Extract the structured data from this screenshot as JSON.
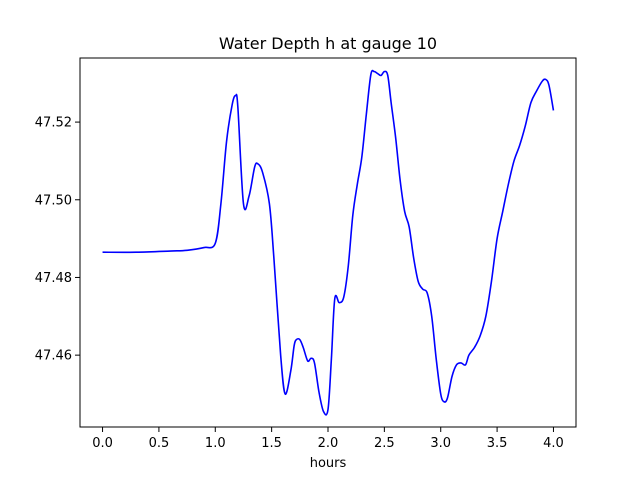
{
  "chart_data": {
    "type": "line",
    "title": "Water Depth h at gauge 10",
    "xlabel": "hours",
    "ylabel": "",
    "xlim": [
      -0.2,
      4.2
    ],
    "ylim": [
      47.4415,
      47.5365
    ],
    "x_ticks": [
      0.0,
      0.5,
      1.0,
      1.5,
      2.0,
      2.5,
      3.0,
      3.5,
      4.0
    ],
    "x_tick_labels": [
      "0.0",
      "0.5",
      "1.0",
      "1.5",
      "2.0",
      "2.5",
      "3.0",
      "3.5",
      "4.0"
    ],
    "y_ticks": [
      47.46,
      47.48,
      47.5,
      47.52
    ],
    "y_tick_labels": [
      "47.46",
      "47.48",
      "47.50",
      "47.52"
    ],
    "grid": false,
    "line_color": "#0000ff",
    "series": [
      {
        "name": "",
        "x": [
          0.0,
          0.3,
          0.6,
          0.75,
          0.9,
          1.0,
          1.05,
          1.1,
          1.15,
          1.18,
          1.2,
          1.25,
          1.3,
          1.35,
          1.38,
          1.42,
          1.48,
          1.52,
          1.58,
          1.62,
          1.67,
          1.7,
          1.72,
          1.75,
          1.78,
          1.82,
          1.85,
          1.88,
          1.92,
          1.96,
          2.0,
          2.03,
          2.06,
          2.1,
          2.14,
          2.18,
          2.22,
          2.26,
          2.3,
          2.34,
          2.38,
          2.41,
          2.44,
          2.47,
          2.5,
          2.53,
          2.56,
          2.6,
          2.64,
          2.68,
          2.72,
          2.76,
          2.8,
          2.84,
          2.88,
          2.92,
          2.96,
          3.0,
          3.03,
          3.06,
          3.1,
          3.14,
          3.18,
          3.22,
          3.25,
          3.3,
          3.35,
          3.4,
          3.45,
          3.5,
          3.55,
          3.6,
          3.65,
          3.7,
          3.75,
          3.8,
          3.85,
          3.9,
          3.93,
          3.96,
          4.0
        ],
        "values": [
          47.4865,
          47.4865,
          47.4868,
          47.487,
          47.4877,
          47.4888,
          47.499,
          47.515,
          47.5245,
          47.5268,
          47.524,
          47.499,
          47.501,
          47.5085,
          47.5092,
          47.507,
          47.499,
          47.485,
          47.46,
          47.45,
          47.456,
          47.4625,
          47.464,
          47.464,
          47.462,
          47.4585,
          47.4592,
          47.458,
          47.4505,
          47.4455,
          47.446,
          47.459,
          47.4745,
          47.4735,
          47.475,
          47.483,
          47.496,
          47.504,
          47.511,
          47.522,
          47.5322,
          47.533,
          47.5325,
          47.532,
          47.533,
          47.532,
          47.525,
          47.516,
          47.505,
          47.497,
          47.493,
          47.485,
          47.479,
          47.477,
          47.476,
          47.47,
          47.459,
          47.45,
          47.448,
          47.449,
          47.4545,
          47.4575,
          47.458,
          47.4575,
          47.46,
          47.462,
          47.465,
          47.47,
          47.479,
          47.49,
          47.497,
          47.504,
          47.51,
          47.514,
          47.519,
          47.525,
          47.528,
          47.5305,
          47.531,
          47.5295,
          47.523
        ]
      }
    ]
  }
}
